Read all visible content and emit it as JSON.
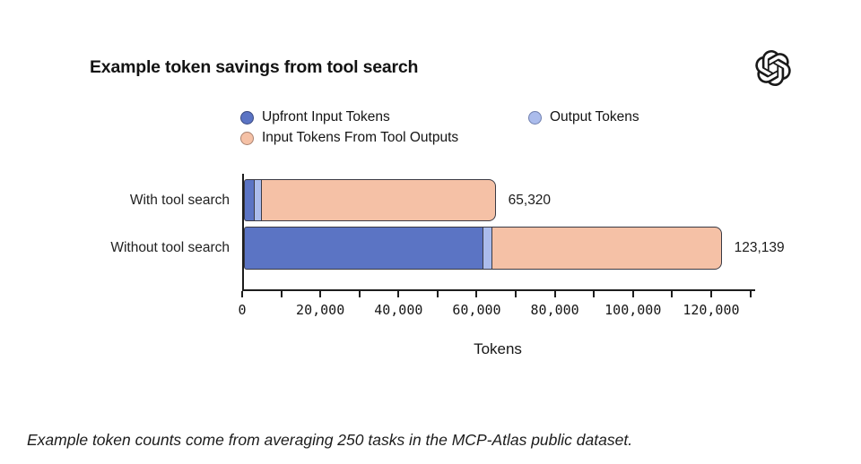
{
  "header": {
    "logo_icon": "openai-logo-icon"
  },
  "footer": {
    "text": "Example token counts come from averaging 250 tasks in the MCP-Atlas public dataset."
  },
  "chart_data": {
    "type": "bar",
    "orientation": "horizontal",
    "stacked": true,
    "title": "Example token savings from tool search",
    "xlabel": "Tokens",
    "categories": [
      "With tool search",
      "Without tool search"
    ],
    "series": [
      {
        "key": "upfront-input-tokens",
        "name": "Upfront Input Tokens",
        "fill": "#5b74c4",
        "edge": "#39497f",
        "values": [
          2900,
          61500
        ]
      },
      {
        "key": "output-tokens",
        "name": "Output Tokens",
        "fill": "#abbcec",
        "edge": "#6f7fae",
        "values": [
          2100,
          2500
        ]
      },
      {
        "key": "input-tokens-from-tool-outputs",
        "name": "Input Tokens From Tool Outputs",
        "fill": "#f5c1a6",
        "edge": "#a98270",
        "values": [
          60320,
          59139
        ]
      }
    ],
    "totals": [
      65320,
      123139
    ],
    "total_labels": [
      "65,320",
      "123,139"
    ],
    "xlim": [
      0,
      130800
    ],
    "x_major_ticks": [
      0,
      20000,
      40000,
      60000,
      80000,
      100000,
      120000
    ],
    "x_major_tick_labels": [
      "0",
      "20,000",
      "40,000",
      "60,000",
      "80,000",
      "100,000",
      "120,000"
    ],
    "x_minor_tick_step": 10000,
    "segment_edge_color": "#3a3a44",
    "axis_color": "#1d1d1d",
    "legend_position": "top",
    "grid": false
  }
}
